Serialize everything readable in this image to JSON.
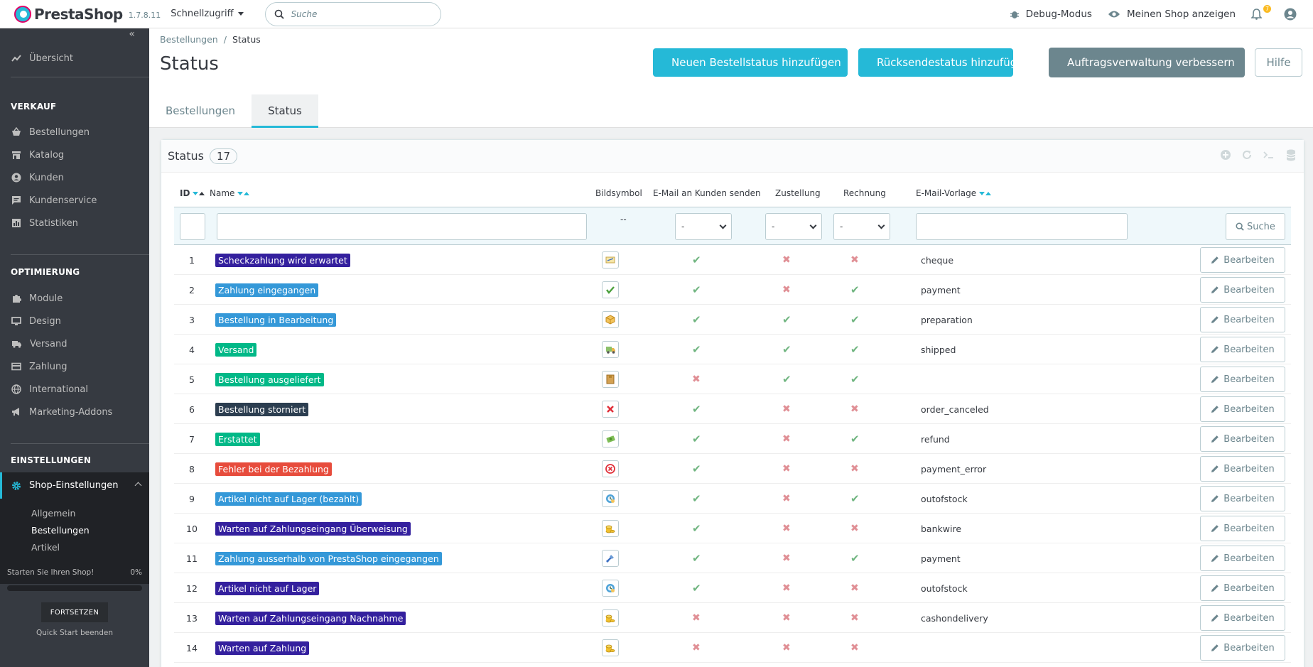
{
  "header": {
    "logo": "PrestaShop",
    "version": "1.7.8.11",
    "quick_access": "Schnellzugriff",
    "search_placeholder": "Suche",
    "debug": "Debug-Modus",
    "view_shop": "Meinen Shop anzeigen",
    "notification_count": "7"
  },
  "sidebar": {
    "overview": "Übersicht",
    "sections": [
      "VERKAUF",
      "OPTIMIERUNG",
      "EINSTELLUNGEN"
    ],
    "sales": [
      "Bestellungen",
      "Katalog",
      "Kunden",
      "Kundenservice",
      "Statistiken"
    ],
    "improve": [
      "Module",
      "Design",
      "Versand",
      "Zahlung",
      "International",
      "Marketing-Addons"
    ],
    "configure": "Shop-Einstellungen",
    "sub_items": [
      "Allgemein",
      "Bestellungen",
      "Artikel"
    ],
    "quickstart": "Starten Sie Ihren Shop!",
    "quickstart_pct": "0%",
    "resume": "FORTSETZEN",
    "end_quickstart": "Quick Start beenden"
  },
  "page": {
    "breadcrumb": [
      "Bestellungen",
      "Status"
    ],
    "title": "Status",
    "buttons": {
      "add_status": "Neuen Bestellstatus hinzufügen",
      "add_return": "Rücksendestatus hinzufügen",
      "improve": "Auftragsverwaltung verbessern",
      "help": "Hilfe"
    },
    "tabs": [
      "Bestellungen",
      "Status"
    ]
  },
  "panel": {
    "title": "Status",
    "count": "17",
    "columns": [
      "ID",
      "Name",
      "Bildsymbol",
      "E-Mail an Kunden senden",
      "Zustellung",
      "Rechnung",
      "E-Mail-Vorlage"
    ],
    "filter_dash": "--",
    "select_value": "-",
    "search_button": "Suche",
    "edit_label": "Bearbeiten",
    "rows": [
      {
        "id": "1",
        "name": "Scheckzahlung wird erwartet",
        "color": "#34209e",
        "icon": "check-payment-icon",
        "mail": true,
        "delivery": false,
        "invoice": false,
        "template": "cheque"
      },
      {
        "id": "2",
        "name": "Zahlung eingegangen",
        "color": "#3498d8",
        "icon": "payment-ok-icon",
        "mail": true,
        "delivery": false,
        "invoice": true,
        "template": "payment"
      },
      {
        "id": "3",
        "name": "Bestellung in Bearbeitung",
        "color": "#3498d8",
        "icon": "package-icon",
        "mail": true,
        "delivery": true,
        "invoice": true,
        "template": "preparation"
      },
      {
        "id": "4",
        "name": "Versand",
        "color": "#01b887",
        "icon": "truck-icon",
        "mail": true,
        "delivery": true,
        "invoice": true,
        "template": "shipped"
      },
      {
        "id": "5",
        "name": "Bestellung ausgeliefert",
        "color": "#01b887",
        "icon": "box-icon",
        "mail": false,
        "delivery": true,
        "invoice": true,
        "template": ""
      },
      {
        "id": "6",
        "name": "Bestellung storniert",
        "color": "#2c3e50",
        "icon": "cancel-icon",
        "mail": true,
        "delivery": false,
        "invoice": false,
        "template": "order_canceled"
      },
      {
        "id": "7",
        "name": "Erstattet",
        "color": "#01b887",
        "icon": "refund-icon",
        "mail": true,
        "delivery": false,
        "invoice": true,
        "template": "refund"
      },
      {
        "id": "8",
        "name": "Fehler bei der Bezahlung",
        "color": "#e74c3c",
        "icon": "error-icon",
        "mail": true,
        "delivery": false,
        "invoice": false,
        "template": "payment_error"
      },
      {
        "id": "9",
        "name": "Artikel nicht auf Lager (bezahlt)",
        "color": "#3498d8",
        "icon": "outofstock-icon",
        "mail": true,
        "delivery": false,
        "invoice": true,
        "template": "outofstock"
      },
      {
        "id": "10",
        "name": "Warten auf Zahlungseingang Überweisung",
        "color": "#34209e",
        "icon": "coins-icon",
        "mail": true,
        "delivery": false,
        "invoice": false,
        "template": "bankwire"
      },
      {
        "id": "11",
        "name": "Zahlung ausserhalb von PrestaShop eingegangen",
        "color": "#3498d8",
        "icon": "remote-payment-icon",
        "mail": true,
        "delivery": false,
        "invoice": true,
        "template": "payment"
      },
      {
        "id": "12",
        "name": "Artikel nicht auf Lager",
        "color": "#34209e",
        "icon": "outofstock-icon",
        "mail": true,
        "delivery": false,
        "invoice": false,
        "template": "outofstock"
      },
      {
        "id": "13",
        "name": "Warten auf Zahlungseingang Nachnahme",
        "color": "#34209e",
        "icon": "coins-icon",
        "mail": false,
        "delivery": false,
        "invoice": false,
        "template": "cashondelivery"
      },
      {
        "id": "14",
        "name": "Warten auf Zahlung",
        "color": "#34209e",
        "icon": "coins-icon",
        "mail": false,
        "delivery": false,
        "invoice": false,
        "template": ""
      }
    ]
  }
}
